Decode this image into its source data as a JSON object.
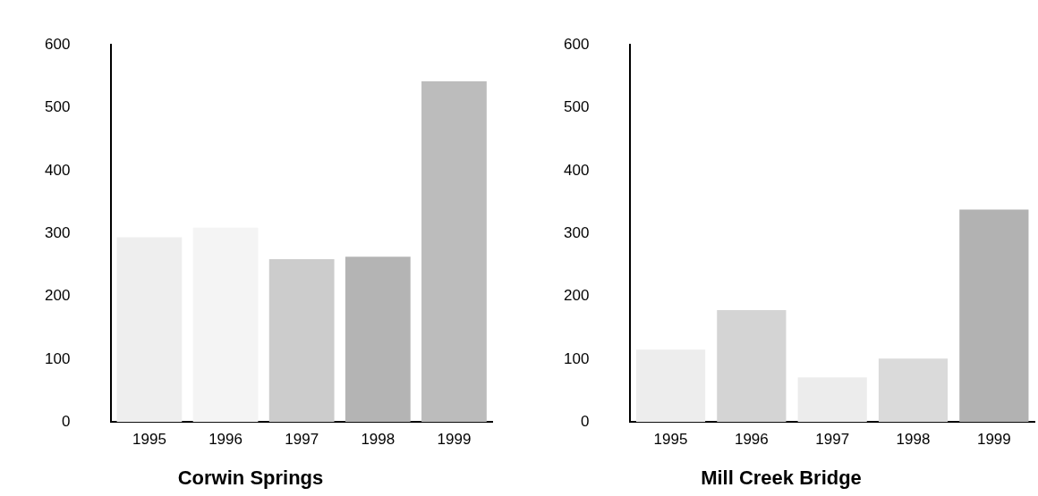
{
  "chart_data": [
    {
      "type": "bar",
      "title": "Corwin Springs",
      "categories": [
        "1995",
        "1996",
        "1997",
        "1998",
        "1999"
      ],
      "values": [
        294,
        309,
        259,
        263,
        542
      ],
      "colors": [
        "#eeeeee",
        "#f4f4f4",
        "#cccccc",
        "#b4b4b4",
        "#bcbcbc"
      ],
      "ylim": [
        0,
        600
      ],
      "yticks": [
        0,
        100,
        200,
        300,
        400,
        500,
        600
      ]
    },
    {
      "type": "bar",
      "title": "Mill Creek Bridge",
      "categories": [
        "1995",
        "1996",
        "1997",
        "1998",
        "1999"
      ],
      "values": [
        115,
        178,
        71,
        101,
        338
      ],
      "colors": [
        "#ededed",
        "#d4d4d4",
        "#ececec",
        "#dadada",
        "#b2b2b2"
      ],
      "ylim": [
        0,
        600
      ],
      "yticks": [
        0,
        100,
        200,
        300,
        400,
        500,
        600
      ]
    }
  ]
}
